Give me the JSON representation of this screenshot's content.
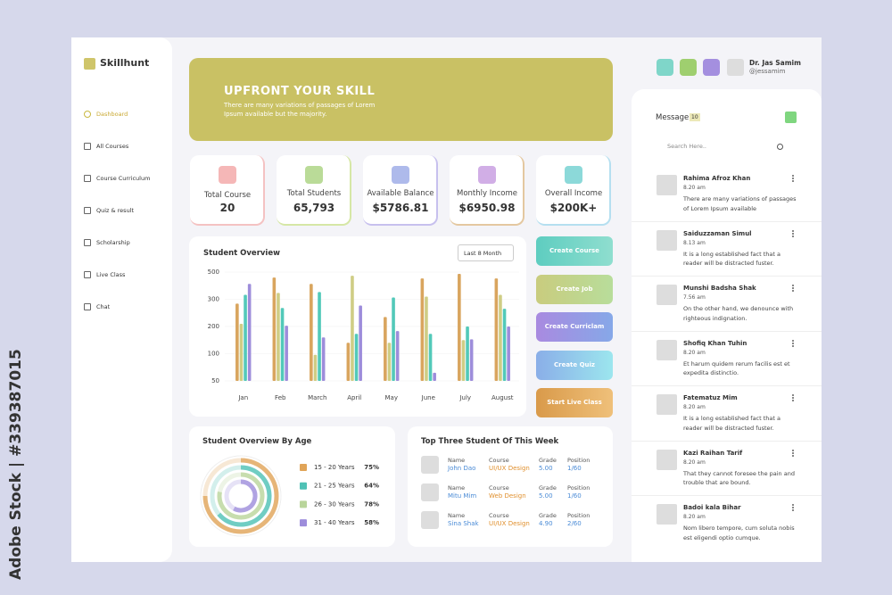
{
  "watermark": "Adobe Stock | #339387015",
  "sidebar": {
    "brand": "Skillhunt",
    "menu": [
      "Dashboard",
      "All Courses",
      "Course Curriculum",
      "Quiz & result",
      "Scholarship",
      "Live Class",
      "Chat"
    ]
  },
  "banner": {
    "title": "UPFRONT YOUR SKILL",
    "text": "There are many variations of passages of Lorem Ipsum available but the majority."
  },
  "stats": [
    {
      "label": "Total Course",
      "value": "20"
    },
    {
      "label": "Total Students",
      "value": "65,793"
    },
    {
      "label": "Available Balance",
      "value": "$5786.81"
    },
    {
      "label": "Monthly Income",
      "value": "$6950.98"
    },
    {
      "label": "Overall Income",
      "value": "$200K+"
    }
  ],
  "actions": [
    "Create Course",
    "Create Job",
    "Create Curriclam",
    "Create Quiz",
    "Start Live Class"
  ],
  "header": {
    "user": "Dr. Jas Samim",
    "handle": "@jessamim"
  },
  "chart_data": [
    {
      "type": "bar",
      "title": "Student Overview",
      "filter": "Last 8 Month",
      "categories": [
        "Jan",
        "Feb",
        "March",
        "April",
        "May",
        "June",
        "July",
        "August"
      ],
      "series": [
        {
          "name": "Week 1",
          "color": "#d9a55e",
          "values": [
            284,
            460,
            413,
            140,
            235,
            453,
            487,
            453
          ]
        },
        {
          "name": "Week 2",
          "color": "#cfcd85",
          "values": [
            210,
            347,
            98,
            473,
            140,
            320,
            150,
            333
          ]
        },
        {
          "name": "Week 3",
          "color": "#52c9b9",
          "values": [
            333,
            268,
            353,
            173,
            313,
            173,
            200,
            265
          ]
        },
        {
          "name": "Week 4",
          "color": "#9d8ddb",
          "values": [
            413,
            203,
            160,
            277,
            183,
            65,
            153,
            200
          ]
        }
      ],
      "ylim": [
        50,
        500
      ],
      "yticks": [
        50,
        100,
        200,
        300,
        500
      ]
    },
    {
      "type": "radial_bar",
      "title": "Student Overview By Age",
      "categories": [
        "15 - 20 Years",
        "21 - 25 Years",
        "26 - 30 Years",
        "31 - 40 Years"
      ],
      "values": [
        75,
        64,
        78,
        58
      ],
      "value_labels": [
        "75%",
        "64%",
        "78%",
        "58%"
      ],
      "colors": [
        "#e0a458",
        "#4fc1b5",
        "#b9d59b",
        "#9d8ddb"
      ]
    }
  ],
  "top_students": {
    "title": "Top Three Student Of This Week",
    "columns": [
      "Name",
      "Course",
      "Grade",
      "Position"
    ],
    "rows": [
      [
        "John Dao",
        "UI/UX Design",
        "5.00",
        "1/60"
      ],
      [
        "Mitu Mim",
        "Web Design",
        "5.00",
        "1/60"
      ],
      [
        "Sina Shak",
        "UI/UX Design",
        "4.90",
        "2/60"
      ]
    ]
  },
  "messages": {
    "title": "Message",
    "count": "10",
    "search": "Search Here..",
    "items": [
      {
        "name": "Rahima Afroz Khan",
        "time": "8.20 am",
        "text": "There are many variations of passages of Lorem Ipsum available"
      },
      {
        "name": "Saiduzzaman Simul",
        "time": "8.13 am",
        "text": "It is a long established fact that a reader will be distracted fuster."
      },
      {
        "name": "Munshi Badsha Shak",
        "time": "7.56 am",
        "text": "On the other hand, we denounce with righteous indignation."
      },
      {
        "name": "Shofiq Khan Tuhin",
        "time": "8.20 am",
        "text": "Et harum quidem rerum facilis est et expedita distinctio."
      },
      {
        "name": "Fatematuz Mim",
        "time": "8.20 am",
        "text": "It is a long established fact that a reader will be distracted fuster."
      },
      {
        "name": "Kazi Raihan Tarif",
        "time": "8.20 am",
        "text": "That they cannot foresee the pain and trouble that are bound."
      },
      {
        "name": "Badoi kala Bihar",
        "time": "8.20 am",
        "text": "Nom libero tempore, cum soluta nobis est eligendi optio cumque."
      }
    ]
  }
}
